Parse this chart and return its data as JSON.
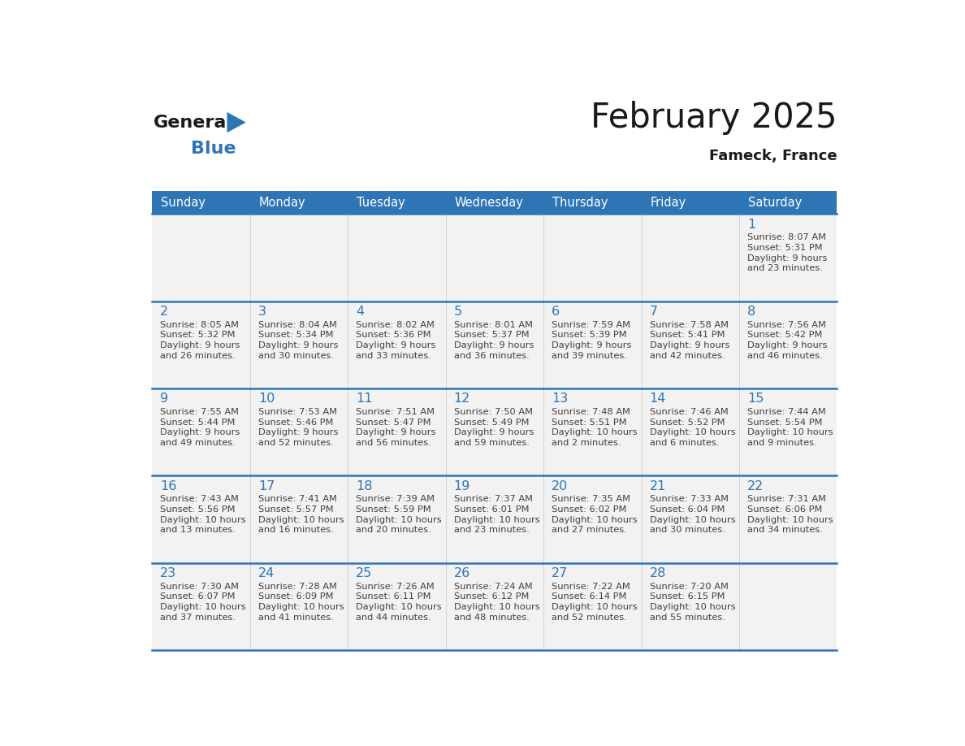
{
  "title": "February 2025",
  "subtitle": "Fameck, France",
  "header_bg": "#2E75B6",
  "header_text_color": "#FFFFFF",
  "day_names": [
    "Sunday",
    "Monday",
    "Tuesday",
    "Wednesday",
    "Thursday",
    "Friday",
    "Saturday"
  ],
  "cell_bg": "#FFFFFF",
  "cell_bg_alt": "#F2F2F2",
  "separator_color": "#2E75B6",
  "date_color": "#2E75B6",
  "text_color": "#404040",
  "logo_general_color": "#1a1a1a",
  "logo_blue_color": "#2E75B6",
  "logo_triangle_color": "#2E75B6",
  "title_color": "#1a1a1a",
  "subtitle_color": "#1a1a1a",
  "calendar": [
    [
      {
        "day": null,
        "info": null
      },
      {
        "day": null,
        "info": null
      },
      {
        "day": null,
        "info": null
      },
      {
        "day": null,
        "info": null
      },
      {
        "day": null,
        "info": null
      },
      {
        "day": null,
        "info": null
      },
      {
        "day": 1,
        "info": "Sunrise: 8:07 AM\nSunset: 5:31 PM\nDaylight: 9 hours\nand 23 minutes."
      }
    ],
    [
      {
        "day": 2,
        "info": "Sunrise: 8:05 AM\nSunset: 5:32 PM\nDaylight: 9 hours\nand 26 minutes."
      },
      {
        "day": 3,
        "info": "Sunrise: 8:04 AM\nSunset: 5:34 PM\nDaylight: 9 hours\nand 30 minutes."
      },
      {
        "day": 4,
        "info": "Sunrise: 8:02 AM\nSunset: 5:36 PM\nDaylight: 9 hours\nand 33 minutes."
      },
      {
        "day": 5,
        "info": "Sunrise: 8:01 AM\nSunset: 5:37 PM\nDaylight: 9 hours\nand 36 minutes."
      },
      {
        "day": 6,
        "info": "Sunrise: 7:59 AM\nSunset: 5:39 PM\nDaylight: 9 hours\nand 39 minutes."
      },
      {
        "day": 7,
        "info": "Sunrise: 7:58 AM\nSunset: 5:41 PM\nDaylight: 9 hours\nand 42 minutes."
      },
      {
        "day": 8,
        "info": "Sunrise: 7:56 AM\nSunset: 5:42 PM\nDaylight: 9 hours\nand 46 minutes."
      }
    ],
    [
      {
        "day": 9,
        "info": "Sunrise: 7:55 AM\nSunset: 5:44 PM\nDaylight: 9 hours\nand 49 minutes."
      },
      {
        "day": 10,
        "info": "Sunrise: 7:53 AM\nSunset: 5:46 PM\nDaylight: 9 hours\nand 52 minutes."
      },
      {
        "day": 11,
        "info": "Sunrise: 7:51 AM\nSunset: 5:47 PM\nDaylight: 9 hours\nand 56 minutes."
      },
      {
        "day": 12,
        "info": "Sunrise: 7:50 AM\nSunset: 5:49 PM\nDaylight: 9 hours\nand 59 minutes."
      },
      {
        "day": 13,
        "info": "Sunrise: 7:48 AM\nSunset: 5:51 PM\nDaylight: 10 hours\nand 2 minutes."
      },
      {
        "day": 14,
        "info": "Sunrise: 7:46 AM\nSunset: 5:52 PM\nDaylight: 10 hours\nand 6 minutes."
      },
      {
        "day": 15,
        "info": "Sunrise: 7:44 AM\nSunset: 5:54 PM\nDaylight: 10 hours\nand 9 minutes."
      }
    ],
    [
      {
        "day": 16,
        "info": "Sunrise: 7:43 AM\nSunset: 5:56 PM\nDaylight: 10 hours\nand 13 minutes."
      },
      {
        "day": 17,
        "info": "Sunrise: 7:41 AM\nSunset: 5:57 PM\nDaylight: 10 hours\nand 16 minutes."
      },
      {
        "day": 18,
        "info": "Sunrise: 7:39 AM\nSunset: 5:59 PM\nDaylight: 10 hours\nand 20 minutes."
      },
      {
        "day": 19,
        "info": "Sunrise: 7:37 AM\nSunset: 6:01 PM\nDaylight: 10 hours\nand 23 minutes."
      },
      {
        "day": 20,
        "info": "Sunrise: 7:35 AM\nSunset: 6:02 PM\nDaylight: 10 hours\nand 27 minutes."
      },
      {
        "day": 21,
        "info": "Sunrise: 7:33 AM\nSunset: 6:04 PM\nDaylight: 10 hours\nand 30 minutes."
      },
      {
        "day": 22,
        "info": "Sunrise: 7:31 AM\nSunset: 6:06 PM\nDaylight: 10 hours\nand 34 minutes."
      }
    ],
    [
      {
        "day": 23,
        "info": "Sunrise: 7:30 AM\nSunset: 6:07 PM\nDaylight: 10 hours\nand 37 minutes."
      },
      {
        "day": 24,
        "info": "Sunrise: 7:28 AM\nSunset: 6:09 PM\nDaylight: 10 hours\nand 41 minutes."
      },
      {
        "day": 25,
        "info": "Sunrise: 7:26 AM\nSunset: 6:11 PM\nDaylight: 10 hours\nand 44 minutes."
      },
      {
        "day": 26,
        "info": "Sunrise: 7:24 AM\nSunset: 6:12 PM\nDaylight: 10 hours\nand 48 minutes."
      },
      {
        "day": 27,
        "info": "Sunrise: 7:22 AM\nSunset: 6:14 PM\nDaylight: 10 hours\nand 52 minutes."
      },
      {
        "day": 28,
        "info": "Sunrise: 7:20 AM\nSunset: 6:15 PM\nDaylight: 10 hours\nand 55 minutes."
      },
      {
        "day": null,
        "info": null
      }
    ]
  ]
}
